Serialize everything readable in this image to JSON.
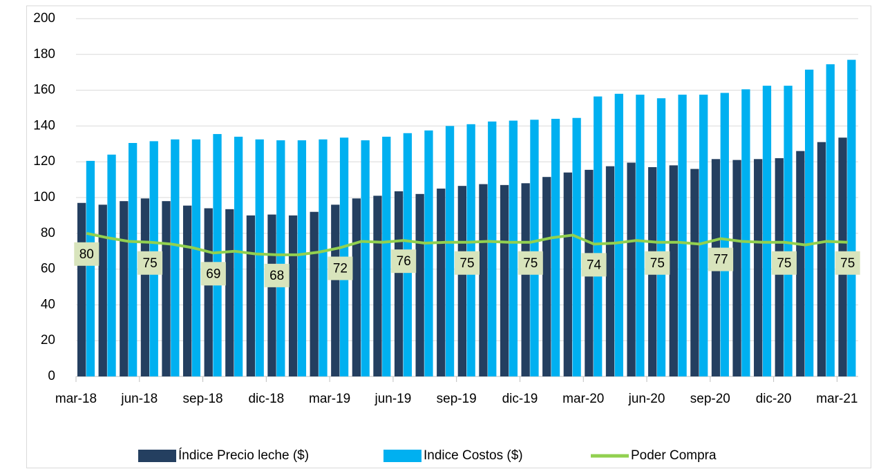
{
  "chart_data": {
    "type": "bar_line",
    "categories": [
      "mar-18",
      null,
      null,
      "jun-18",
      null,
      null,
      "sep-18",
      null,
      null,
      "dic-18",
      null,
      null,
      "mar-19",
      null,
      null,
      "jun-19",
      null,
      null,
      "sep-19",
      null,
      null,
      "dic-19",
      null,
      null,
      "mar-20",
      null,
      null,
      "jun-20",
      null,
      null,
      "sep-20",
      null,
      null,
      "dic-20",
      null,
      null,
      "mar-21"
    ],
    "series": [
      {
        "name": "Índice Precio leche ($)",
        "type": "bar",
        "color": "#243f60",
        "values": [
          97,
          96,
          98,
          99.5,
          98,
          95.5,
          94,
          93.5,
          90,
          90.5,
          90,
          92,
          96,
          99.5,
          101,
          103.5,
          102,
          105,
          106.5,
          107.5,
          107,
          108,
          111.5,
          114,
          115.5,
          117.5,
          119.5,
          117,
          118,
          116,
          121.5,
          121,
          121.5,
          122,
          126,
          131,
          133.5
        ]
      },
      {
        "name": "Indice Costos ($)",
        "type": "bar",
        "color": "#00b0f0",
        "values": [
          120.5,
          124,
          130.5,
          131.5,
          132.5,
          132.5,
          135.5,
          134,
          132.5,
          132,
          132,
          132.5,
          133.5,
          132,
          134,
          136,
          137.5,
          140,
          141,
          142.5,
          143,
          143.5,
          144,
          144.5,
          156.5,
          158,
          157.5,
          155.5,
          157.5,
          157.5,
          158.5,
          160.5,
          162.5,
          162.5,
          171.5,
          174.5,
          177
        ]
      },
      {
        "name": "Poder Compra",
        "type": "line",
        "color": "#92d050",
        "data_label_every": 3,
        "values": [
          80,
          77.5,
          75.5,
          75,
          74,
          72,
          69,
          70,
          68.5,
          68,
          68,
          69.5,
          72,
          75.5,
          75,
          76,
          74.5,
          75,
          75,
          75.5,
          75,
          75,
          77.5,
          79,
          74,
          74.5,
          76,
          75,
          75,
          74,
          77,
          75.5,
          75,
          75,
          73.5,
          75.5,
          75
        ]
      }
    ],
    "ylim": [
      0,
      200
    ],
    "yticks": [
      0,
      20,
      40,
      60,
      80,
      100,
      120,
      140,
      160,
      180,
      200
    ],
    "grid": true
  }
}
